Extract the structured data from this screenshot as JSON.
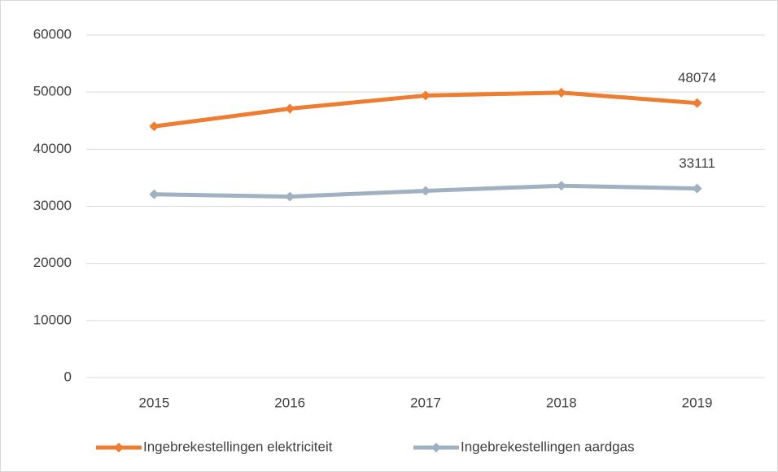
{
  "chart_data": {
    "type": "line",
    "categories": [
      "2015",
      "2016",
      "2017",
      "2018",
      "2019"
    ],
    "series": [
      {
        "name": "Ingebrekestellingen elektriciteit",
        "color": "#ed7d31",
        "values": [
          44000,
          47100,
          49400,
          49900,
          48074
        ]
      },
      {
        "name": "Ingebrekestellingen aardgas",
        "color": "#a0b1c2",
        "values": [
          32100,
          31700,
          32700,
          33600,
          33111
        ]
      }
    ],
    "ylim": [
      0,
      60000
    ],
    "yticks": [
      0,
      10000,
      20000,
      30000,
      40000,
      50000,
      60000
    ],
    "grid": true,
    "legend": "bottom"
  }
}
